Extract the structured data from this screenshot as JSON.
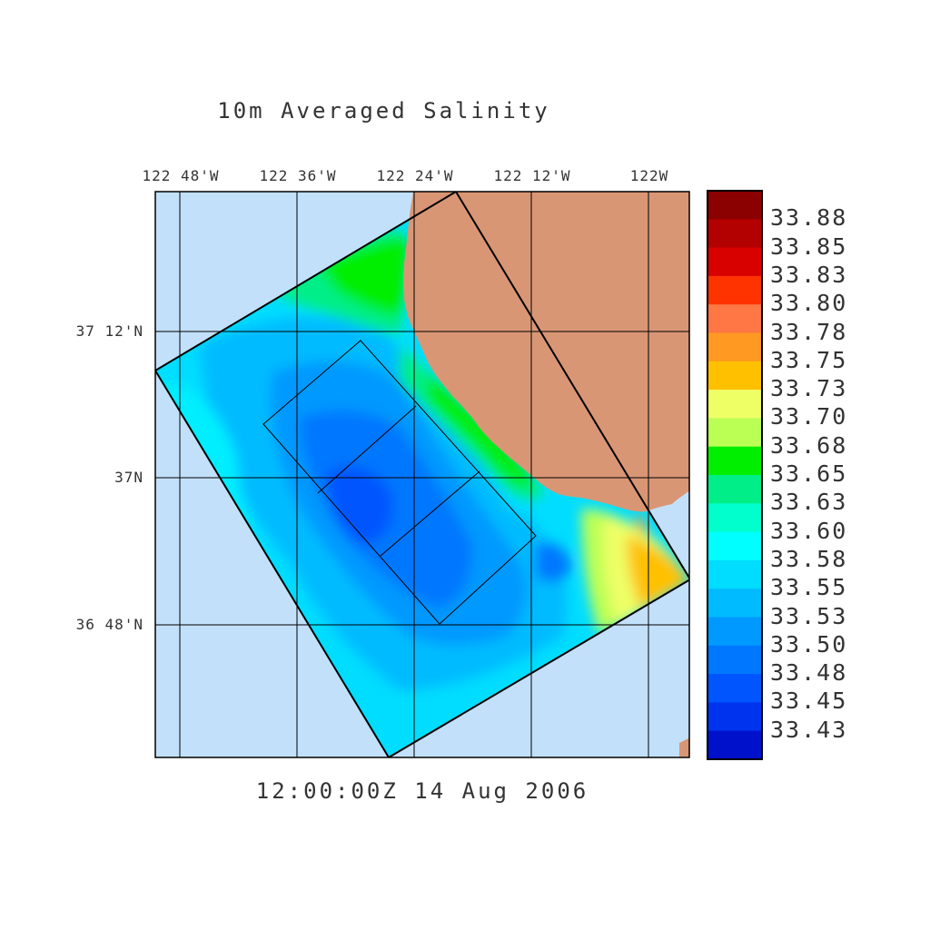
{
  "title": "10m Averaged Salinity",
  "timestamp": "12:00:00Z  14 Aug 2006",
  "lon_ticks": [
    "122 48'W",
    "122 36'W",
    "122 24'W",
    "122 12'W",
    "122W"
  ],
  "lat_ticks": [
    "37 12'N",
    "37N",
    "36 48'N"
  ],
  "colorbar": {
    "labels": [
      "33.88",
      "33.85",
      "33.83",
      "33.80",
      "33.78",
      "33.75",
      "33.73",
      "33.70",
      "33.68",
      "33.65",
      "33.63",
      "33.60",
      "33.58",
      "33.55",
      "33.53",
      "33.50",
      "33.48",
      "33.45",
      "33.43"
    ],
    "colors": [
      "#8b0000",
      "#b30000",
      "#d90000",
      "#ff3300",
      "#ff7744",
      "#ff9922",
      "#ffc000",
      "#eeff66",
      "#bbff55",
      "#00ee00",
      "#00ee88",
      "#00ffcc",
      "#00ffff",
      "#00ddff",
      "#00bbff",
      "#0099ff",
      "#0077ff",
      "#0055ff",
      "#0033ee",
      "#0011cc"
    ]
  },
  "colors": {
    "ocean": "#c2e0fa",
    "land": "#d99675",
    "grid": "#000000"
  }
}
